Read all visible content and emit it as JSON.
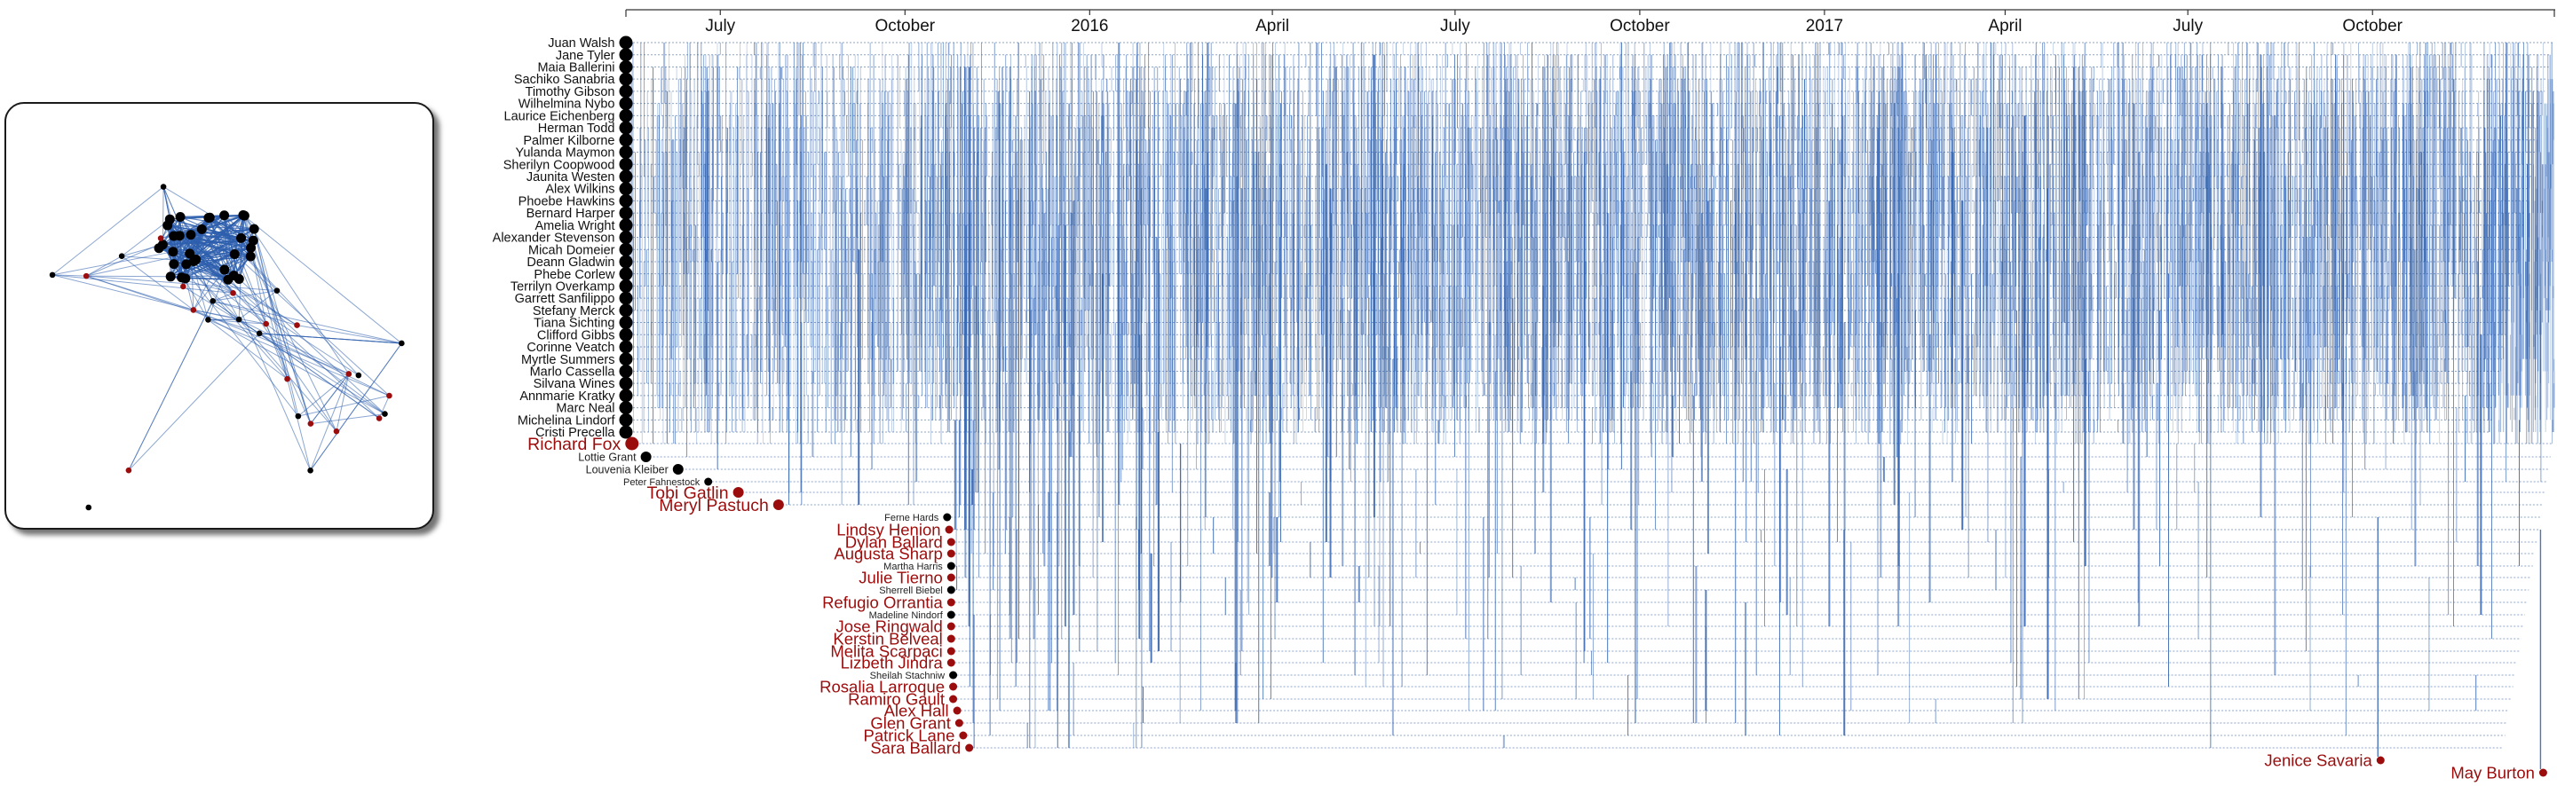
{
  "colors": {
    "edge": "#2d5fad",
    "core_node": "#000000",
    "attention_node": "#9b0d0d",
    "axis": "#333333"
  },
  "chart_data": [
    {
      "type": "timeline",
      "x_axis": {
        "start": "2015-05-15",
        "end": "2017-12-31",
        "ticks": [
          {
            "label": "July",
            "date": "2015-07-01"
          },
          {
            "label": "October",
            "date": "2015-10-01"
          },
          {
            "label": "2016",
            "date": "2016-01-01"
          },
          {
            "label": "April",
            "date": "2016-04-01"
          },
          {
            "label": "July",
            "date": "2016-07-01"
          },
          {
            "label": "October",
            "date": "2016-10-01"
          },
          {
            "label": "2017",
            "date": "2017-01-01"
          },
          {
            "label": "April",
            "date": "2017-04-01"
          },
          {
            "label": "July",
            "date": "2017-07-01"
          },
          {
            "label": "October",
            "date": "2017-10-01"
          }
        ]
      },
      "people": [
        {
          "name": "Juan Walsh",
          "joined": "2015-05-15",
          "group": "core",
          "size": "large"
        },
        {
          "name": "Jane Tyler",
          "joined": "2015-05-15",
          "group": "core",
          "size": "large"
        },
        {
          "name": "Maia Ballerini",
          "joined": "2015-05-15",
          "group": "core",
          "size": "large"
        },
        {
          "name": "Sachiko Sanabria",
          "joined": "2015-05-15",
          "group": "core",
          "size": "large"
        },
        {
          "name": "Timothy Gibson",
          "joined": "2015-05-15",
          "group": "core",
          "size": "large"
        },
        {
          "name": "Wilhelmina Nybo",
          "joined": "2015-05-15",
          "group": "core",
          "size": "large"
        },
        {
          "name": "Laurice Eichenberg",
          "joined": "2015-05-15",
          "group": "core",
          "size": "large"
        },
        {
          "name": "Herman Todd",
          "joined": "2015-05-15",
          "group": "core",
          "size": "large"
        },
        {
          "name": "Palmer Kilborne",
          "joined": "2015-05-15",
          "group": "core",
          "size": "large"
        },
        {
          "name": "Yulanda Maymon",
          "joined": "2015-05-15",
          "group": "core",
          "size": "large"
        },
        {
          "name": "Sherilyn Coopwood",
          "joined": "2015-05-15",
          "group": "core",
          "size": "large"
        },
        {
          "name": "Jaunita Westen",
          "joined": "2015-05-15",
          "group": "core",
          "size": "large"
        },
        {
          "name": "Alex Wilkins",
          "joined": "2015-05-15",
          "group": "core",
          "size": "large"
        },
        {
          "name": "Phoebe Hawkins",
          "joined": "2015-05-15",
          "group": "core",
          "size": "large"
        },
        {
          "name": "Bernard Harper",
          "joined": "2015-05-15",
          "group": "core",
          "size": "large"
        },
        {
          "name": "Amelia Wright",
          "joined": "2015-05-15",
          "group": "core",
          "size": "large"
        },
        {
          "name": "Alexander Stevenson",
          "joined": "2015-05-15",
          "group": "core",
          "size": "large"
        },
        {
          "name": "Micah Domeier",
          "joined": "2015-05-15",
          "group": "core",
          "size": "large"
        },
        {
          "name": "Deann Gladwin",
          "joined": "2015-05-15",
          "group": "core",
          "size": "large"
        },
        {
          "name": "Phebe Corlew",
          "joined": "2015-05-15",
          "group": "core",
          "size": "large"
        },
        {
          "name": "Terrilyn Overkamp",
          "joined": "2015-05-15",
          "group": "core",
          "size": "large"
        },
        {
          "name": "Garrett Sanfilippo",
          "joined": "2015-05-15",
          "group": "core",
          "size": "large"
        },
        {
          "name": "Stefany Merck",
          "joined": "2015-05-15",
          "group": "core",
          "size": "large"
        },
        {
          "name": "Tiana Sichting",
          "joined": "2015-05-15",
          "group": "core",
          "size": "large"
        },
        {
          "name": "Clifford Gibbs",
          "joined": "2015-05-15",
          "group": "core",
          "size": "large"
        },
        {
          "name": "Corinne Veatch",
          "joined": "2015-05-15",
          "group": "core",
          "size": "large"
        },
        {
          "name": "Myrtle Summers",
          "joined": "2015-05-15",
          "group": "core",
          "size": "large"
        },
        {
          "name": "Marlo Cassella",
          "joined": "2015-05-15",
          "group": "core",
          "size": "large"
        },
        {
          "name": "Silvana Wines",
          "joined": "2015-05-15",
          "group": "core",
          "size": "large"
        },
        {
          "name": "Annmarie Kratky",
          "joined": "2015-05-15",
          "group": "core",
          "size": "large"
        },
        {
          "name": "Marc Neal",
          "joined": "2015-05-15",
          "group": "core",
          "size": "large"
        },
        {
          "name": "Michelina Lindorf",
          "joined": "2015-05-15",
          "group": "core",
          "size": "large"
        },
        {
          "name": "Cristi Precella",
          "joined": "2015-05-15",
          "group": "core",
          "size": "large"
        },
        {
          "name": "Richard Fox",
          "joined": "2015-05-18",
          "group": "attention",
          "size": "large"
        },
        {
          "name": "Lottie Grant",
          "joined": "2015-05-25",
          "group": "core",
          "size": "medium"
        },
        {
          "name": "Louvenia Kleiber",
          "joined": "2015-06-10",
          "group": "core",
          "size": "medium"
        },
        {
          "name": "Peter Fahnestock",
          "joined": "2015-06-25",
          "group": "core",
          "size": "small"
        },
        {
          "name": "Tobi Gatlin",
          "joined": "2015-07-10",
          "group": "attention",
          "size": "medium"
        },
        {
          "name": "Meryl Pastuch",
          "joined": "2015-07-30",
          "group": "attention",
          "size": "medium"
        },
        {
          "name": "Ferne Hards",
          "joined": "2015-10-22",
          "group": "core",
          "size": "small"
        },
        {
          "name": "Lindsy Henion",
          "joined": "2015-10-23",
          "group": "attention",
          "size": "small"
        },
        {
          "name": "Dylan Ballard",
          "joined": "2015-10-24",
          "group": "attention",
          "size": "small"
        },
        {
          "name": "Augusta Sharp",
          "joined": "2015-10-24",
          "group": "attention",
          "size": "small"
        },
        {
          "name": "Martha Harris",
          "joined": "2015-10-24",
          "group": "core",
          "size": "small"
        },
        {
          "name": "Julie Tierno",
          "joined": "2015-10-24",
          "group": "attention",
          "size": "small"
        },
        {
          "name": "Sherrell Biebel",
          "joined": "2015-10-24",
          "group": "core",
          "size": "small"
        },
        {
          "name": "Refugio Orrantia",
          "joined": "2015-10-24",
          "group": "attention",
          "size": "small"
        },
        {
          "name": "Madeline Nindorf",
          "joined": "2015-10-24",
          "group": "core",
          "size": "small"
        },
        {
          "name": "Jose Ringwald",
          "joined": "2015-10-24",
          "group": "attention",
          "size": "small"
        },
        {
          "name": "Kerstin Belveal",
          "joined": "2015-10-24",
          "group": "attention",
          "size": "small"
        },
        {
          "name": "Melita Scarpaci",
          "joined": "2015-10-24",
          "group": "attention",
          "size": "small"
        },
        {
          "name": "Lizbeth Jindra",
          "joined": "2015-10-24",
          "group": "attention",
          "size": "small"
        },
        {
          "name": "Sheilah Stachniw",
          "joined": "2015-10-25",
          "group": "core",
          "size": "small"
        },
        {
          "name": "Rosalia Larroque",
          "joined": "2015-10-25",
          "group": "attention",
          "size": "small"
        },
        {
          "name": "Ramiro Gault",
          "joined": "2015-10-25",
          "group": "attention",
          "size": "small"
        },
        {
          "name": "Alex Hall",
          "joined": "2015-10-27",
          "group": "attention",
          "size": "small"
        },
        {
          "name": "Glen Grant",
          "joined": "2015-10-28",
          "group": "attention",
          "size": "small"
        },
        {
          "name": "Patrick Lane",
          "joined": "2015-10-30",
          "group": "attention",
          "size": "small"
        },
        {
          "name": "Sara Ballard",
          "joined": "2015-11-02",
          "group": "attention",
          "size": "small"
        },
        {
          "name": "Jenice Savaria",
          "joined": "2017-10-05",
          "group": "attention",
          "size": "small"
        },
        {
          "name": "May Burton",
          "joined": "2017-12-25",
          "group": "attention",
          "size": "small"
        }
      ],
      "legend": "none",
      "grid": false
    },
    {
      "type": "network",
      "nodes_core": 33,
      "nodes_peripheral": 28
    }
  ]
}
